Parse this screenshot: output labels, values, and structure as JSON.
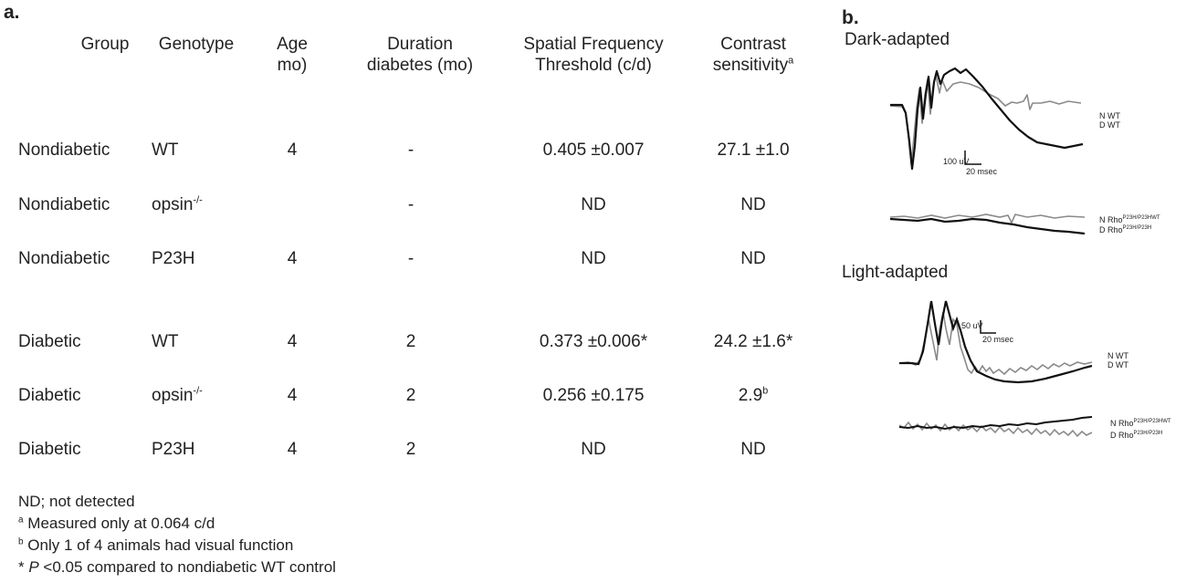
{
  "panel_a_label": "a.",
  "panel_b_label": "b.",
  "table": {
    "headers": [
      {
        "line1": "Group",
        "line2": ""
      },
      {
        "line1": "Genotype",
        "line2": ""
      },
      {
        "line1": "Age",
        "line2": "mo)"
      },
      {
        "line1": "Duration",
        "line2": "diabetes (mo)"
      },
      {
        "line1": "Spatial Frequency",
        "line2": "Threshold (c/d)"
      },
      {
        "line1": "Contrast",
        "line2": "sensitivity",
        "sup": "a"
      }
    ],
    "rows": [
      {
        "group": "Nondiabetic",
        "genotype": "WT",
        "genotype_sup": "",
        "age": "4",
        "duration": "-",
        "sf": "0.405 ±0.007",
        "cs": "27.1 ±1.0",
        "cs_sup": ""
      },
      {
        "group": "Nondiabetic",
        "genotype": "opsin",
        "genotype_sup": "-/-",
        "age": "",
        "duration": "-",
        "sf": "ND",
        "cs": "ND",
        "cs_sup": ""
      },
      {
        "group": "Nondiabetic",
        "genotype": "P23H",
        "genotype_sup": "",
        "age": "4",
        "duration": "-",
        "sf": "ND",
        "cs": "ND",
        "cs_sup": ""
      },
      {
        "group": "Diabetic",
        "genotype": "WT",
        "genotype_sup": "",
        "age": "4",
        "duration": "2",
        "sf": "0.373 ±0.006*",
        "cs": "24.2 ±1.6*",
        "cs_sup": ""
      },
      {
        "group": "Diabetic",
        "genotype": "opsin",
        "genotype_sup": "-/-",
        "age": "4",
        "duration": "2",
        "sf": "0.256 ±0.175",
        "cs": "2.9",
        "cs_sup": "b"
      },
      {
        "group": "Diabetic",
        "genotype": "P23H",
        "genotype_sup": "",
        "age": "4",
        "duration": "2",
        "sf": "ND",
        "cs": "ND",
        "cs_sup": ""
      }
    ]
  },
  "footnotes": {
    "nd": "ND; not detected",
    "a_mark": "a",
    "a_text": " Measured only at 0.064 c/d",
    "b_mark": "b",
    "b_text": " Only 1 of 4 animals had visual function",
    "star_prefix": "* ",
    "star_p": "P",
    "star_text": " <0.05 compared to nondiabetic WT control"
  },
  "erg": {
    "dark": {
      "title": "Dark-adapted",
      "scale_amp": "100 uV",
      "scale_time": "20 msec",
      "wt_labels": [
        "N WT",
        "D WT"
      ],
      "mut_label_n": "N Rho",
      "mut_sup_n": "P23H/P23HWT",
      "mut_label_d": "D Rho",
      "mut_sup_d": "P23H/P23H"
    },
    "light": {
      "title": "Light-adapted",
      "scale_amp": "50 uV",
      "scale_time": "20 msec",
      "wt_labels": [
        "N WT",
        "D WT"
      ],
      "mut_label_n": "N Rho",
      "mut_sup_n": "P23H/P23HWT",
      "mut_label_d": "D Rho",
      "mut_sup_d": "P23H/P23H"
    },
    "colors": {
      "nondiabetic": "#8a8a8a",
      "diabetic": "#111111"
    }
  }
}
